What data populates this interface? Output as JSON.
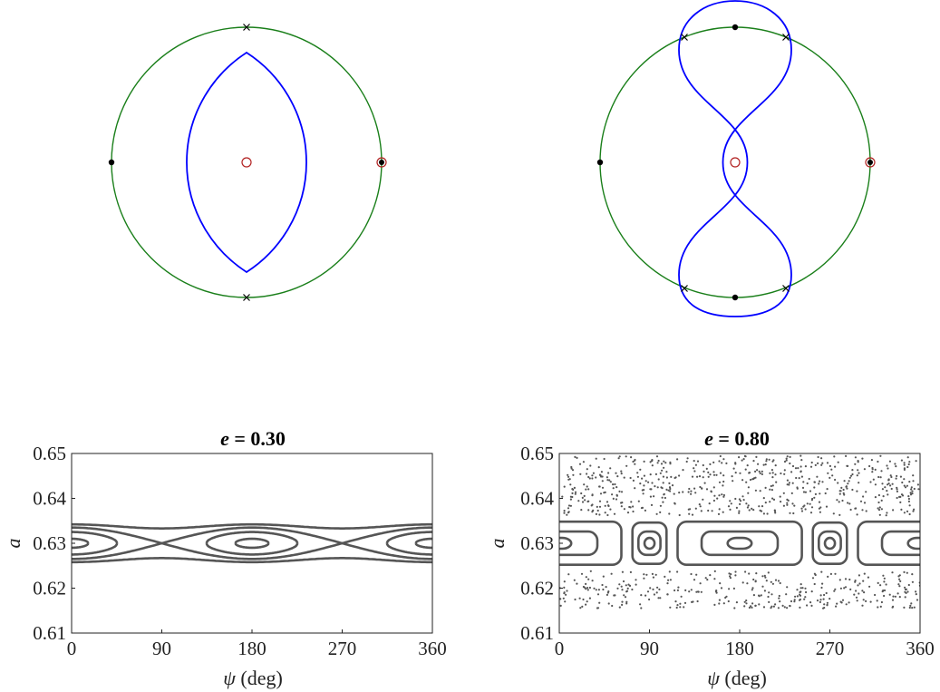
{
  "chart_data": [
    {
      "type": "diagram",
      "panel": "top-left",
      "orbit_circle_color": "#1a7f1a",
      "curve_color": "#0000ff",
      "center_marker_color": "#b22222",
      "curve_shape": "single lens",
      "markers": [
        "cross top",
        "cross bottom",
        "dot left",
        "dot right (circled)",
        "circle center"
      ]
    },
    {
      "type": "diagram",
      "panel": "top-right",
      "orbit_circle_color": "#1a7f1a",
      "curve_color": "#0000ff",
      "center_marker_color": "#b22222",
      "curve_shape": "figure-eight with central lens",
      "markers": [
        "4 crosses on circle",
        "dot top",
        "dot bottom",
        "dot left",
        "dot right (circled)",
        "circle center"
      ]
    },
    {
      "type": "scatter",
      "panel": "bottom-left",
      "title": "e = 0.30",
      "title_var": "e",
      "title_value": "0.30",
      "xlabel": "ψ (deg)",
      "xlabel_var": "ψ",
      "xlabel_unit": "(deg)",
      "ylabel": "a",
      "xlim": [
        0,
        360
      ],
      "ylim": [
        0.61,
        0.65
      ],
      "xticks": [
        "0",
        "90",
        "180",
        "270",
        "360"
      ],
      "yticks": [
        "0.65",
        "0.64",
        "0.63",
        "0.62",
        "0.61"
      ],
      "marker_color": "#555555",
      "curves": {
        "center": 0.63,
        "libration_centers_deg": [
          0,
          180,
          360
        ],
        "saddles_deg": [
          90,
          270
        ],
        "libration_half_widths": [
          0.001,
          0.0025
        ],
        "separatrix_half_width": 0.0035,
        "circulation_offsets": [
          0.0042
        ]
      }
    },
    {
      "type": "scatter",
      "panel": "bottom-right",
      "title": "e = 0.80",
      "title_var": "e",
      "title_value": "0.80",
      "xlabel": "ψ (deg)",
      "xlabel_var": "ψ",
      "xlabel_unit": "(deg)",
      "ylabel": "a",
      "xlim": [
        0,
        360
      ],
      "ylim": [
        0.61,
        0.65
      ],
      "xticks": [
        "0",
        "90",
        "180",
        "270",
        "360"
      ],
      "yticks": [
        "0.65",
        "0.64",
        "0.63",
        "0.62",
        "0.61"
      ],
      "marker_color": "#555555",
      "curves": {
        "center": 0.63,
        "main_islands_deg": [
          0,
          180,
          360
        ],
        "secondary_islands_deg": [
          90,
          270
        ],
        "main_island_half_widths_a": [
          0.0012,
          0.0026,
          0.0048
        ],
        "secondary_island_half_widths_a": [
          0.0012,
          0.0026,
          0.0046
        ],
        "chaotic_band_a": [
          0.6155,
          0.6495
        ]
      }
    }
  ]
}
